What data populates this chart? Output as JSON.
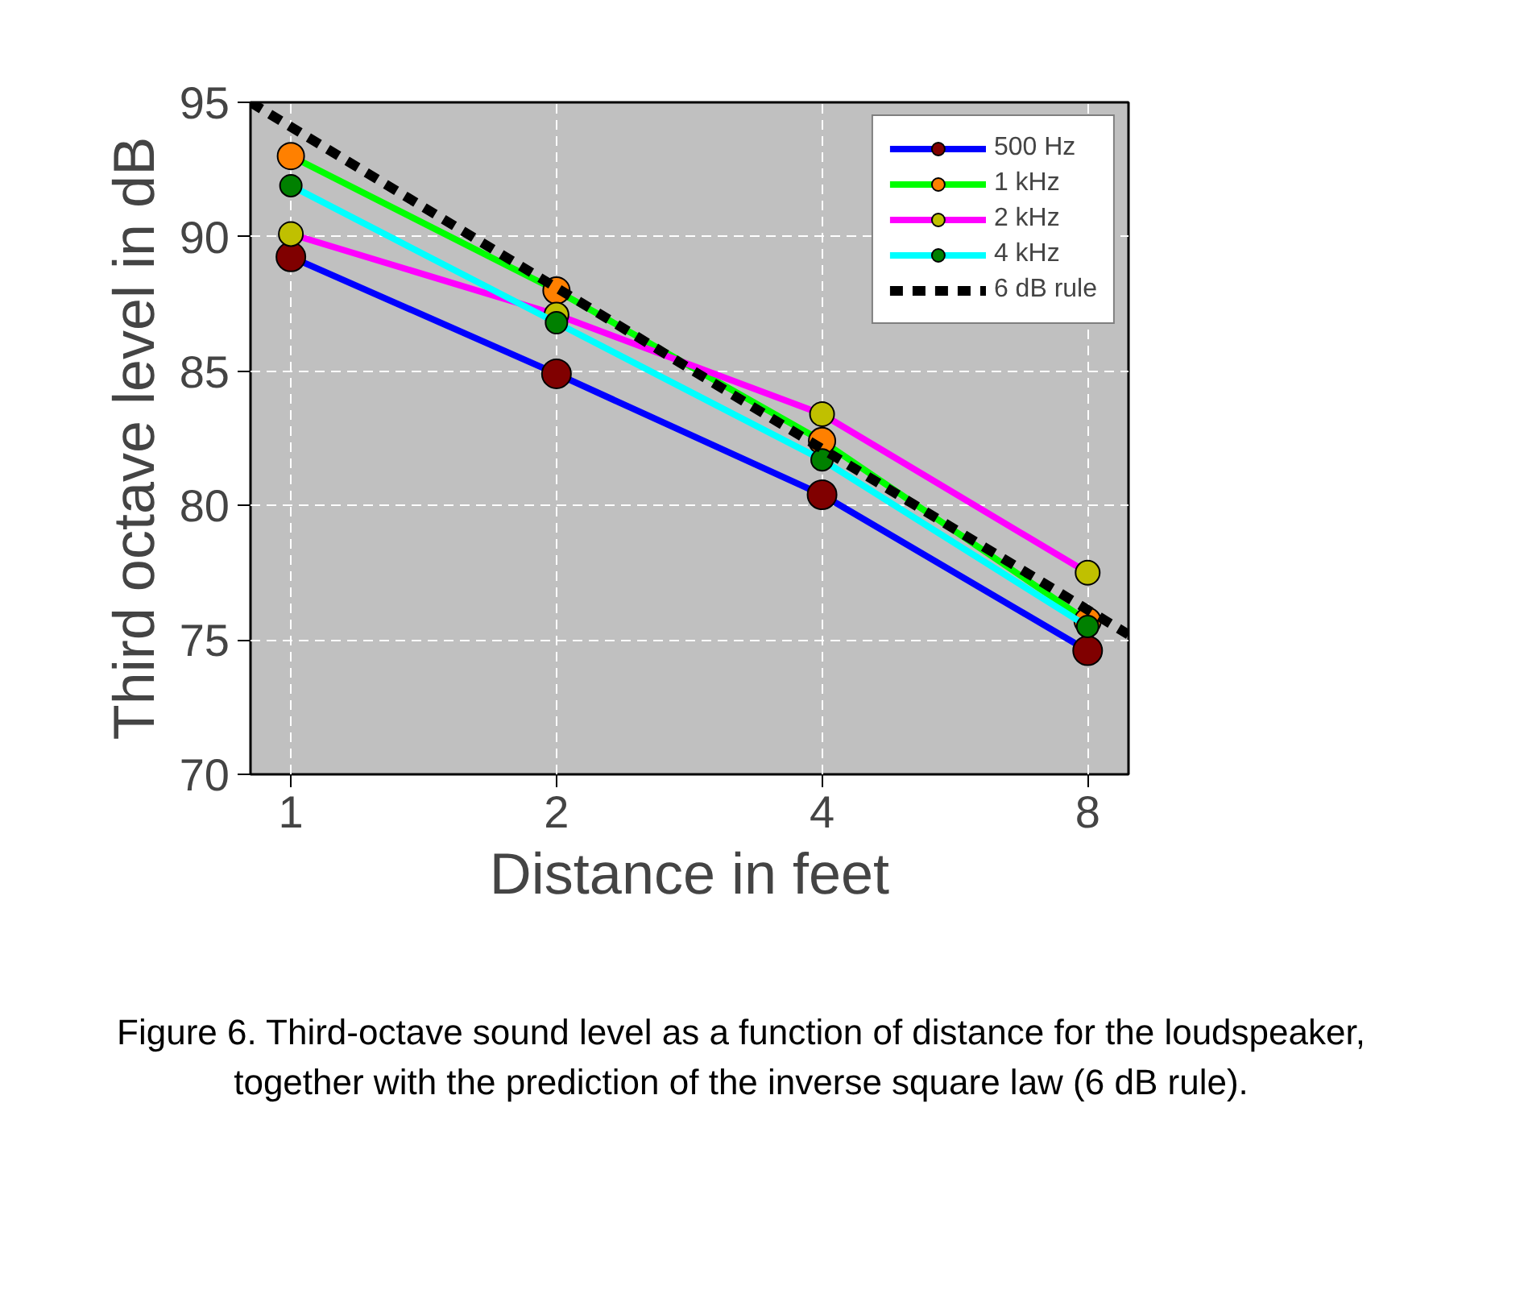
{
  "chart_data": {
    "type": "line",
    "xlabel": "Distance in feet",
    "ylabel": "Third octave level in dB",
    "x": [
      1,
      2,
      4,
      8
    ],
    "series": [
      {
        "name": "500 Hz",
        "color": "#0000ff",
        "colors": [
          "#800000",
          "#800000",
          "#800000",
          "#800000"
        ],
        "values": [
          89.25,
          84.9,
          80.4,
          74.6
        ]
      },
      {
        "name": "1 kHz",
        "color": "#00ff00",
        "colors": [
          "#ff8000",
          "#ff8000",
          "#ff8000",
          "#ff8000"
        ],
        "values": [
          93.0,
          88.0,
          82.4,
          75.7
        ]
      },
      {
        "name": "2 kHz",
        "color": "#ff00ff",
        "colors": [
          "#c0c000",
          "#c0c000",
          "#c0c000",
          "#c0c000"
        ],
        "values": [
          90.1,
          87.1,
          83.4,
          77.5
        ]
      },
      {
        "name": "4 kHz",
        "color": "#00ffff",
        "colors": [
          "#008000",
          "#008000",
          "#008000",
          "#008000"
        ],
        "values": [
          91.9,
          86.8,
          81.7,
          75.5
        ]
      },
      {
        "name": "6 dB rule",
        "color": "#000000",
        "x": [
          0.9,
          8.9
        ],
        "values": [
          95.0,
          75.2
        ],
        "marker": "none",
        "line_style": "dashed"
      }
    ],
    "log": "x",
    "xlim": [
      0.9,
      8.9
    ],
    "xticks": [
      1,
      2,
      4,
      8
    ],
    "ylim": [
      70,
      95
    ],
    "yticks": [
      70,
      75,
      80,
      85,
      90,
      95
    ],
    "grid": true,
    "legend": "top right",
    "marker": "circle",
    "line_style": "solid",
    "annotations": [
      "Figure 6. Third-octave sound level as a function of distance for the loudspeaker, together with the prediction of the inverse square law (6 dB rule)."
    ]
  }
}
